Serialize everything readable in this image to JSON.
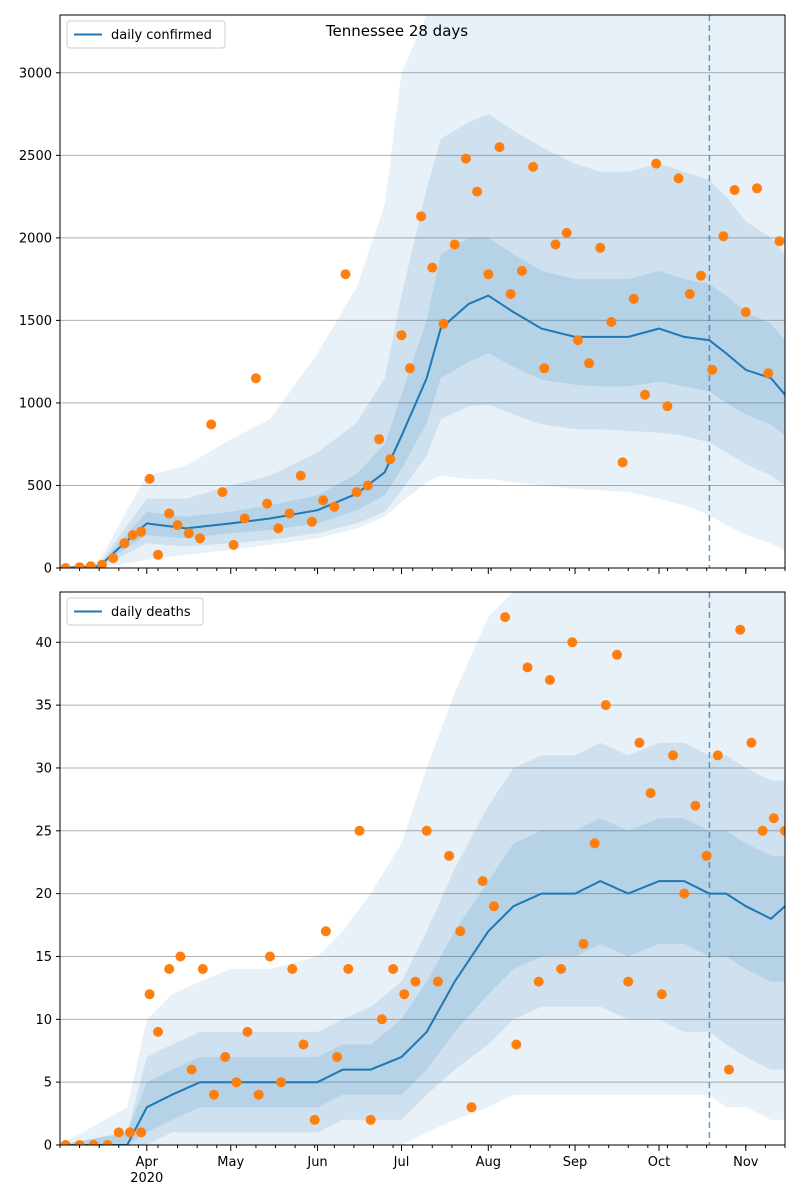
{
  "title": "Tennessee 28 days",
  "x_ticks": [
    "Apr",
    "May",
    "Jun",
    "Jul",
    "Aug",
    "Sep",
    "Oct",
    "Nov"
  ],
  "x_year_label": "2020",
  "colors": {
    "line": "#1f77b4",
    "points": "#ff7f0e",
    "band": "#1f77b4",
    "grid": "#b0b0b0"
  },
  "chart_data": [
    {
      "type": "line",
      "legend_label": "daily confirmed",
      "legend_position": "top-left",
      "x_range": [
        "2020-03-01",
        "2020-11-15"
      ],
      "ylim": [
        0,
        3350
      ],
      "yticks": [
        0,
        500,
        1000,
        1500,
        2000,
        2500,
        3000
      ],
      "grid": "y",
      "forecast_start": "2020-10-19",
      "line": {
        "x": [
          "2020-03-01",
          "2020-03-15",
          "2020-03-22",
          "2020-04-01",
          "2020-04-15",
          "2020-05-01",
          "2020-05-15",
          "2020-06-01",
          "2020-06-15",
          "2020-06-25",
          "2020-07-01",
          "2020-07-10",
          "2020-07-15",
          "2020-07-25",
          "2020-08-01",
          "2020-08-10",
          "2020-08-20",
          "2020-09-01",
          "2020-09-10",
          "2020-09-20",
          "2020-10-01",
          "2020-10-10",
          "2020-10-19",
          "2020-10-25",
          "2020-11-01",
          "2020-11-10",
          "2020-11-15"
        ],
        "y": [
          0,
          10,
          120,
          270,
          240,
          270,
          300,
          350,
          450,
          580,
          800,
          1150,
          1450,
          1600,
          1650,
          1550,
          1450,
          1400,
          1400,
          1400,
          1450,
          1400,
          1380,
          1300,
          1200,
          1150,
          1050
        ]
      },
      "bands": [
        {
          "level": "outer",
          "lower": [
            0,
            0,
            20,
            50,
            80,
            110,
            140,
            180,
            240,
            310,
            400,
            520,
            560,
            540,
            540,
            520,
            500,
            480,
            470,
            460,
            420,
            380,
            320,
            260,
            200,
            150,
            100
          ],
          "upper": [
            0,
            40,
            260,
            560,
            620,
            780,
            900,
            1300,
            1700,
            2200,
            3000,
            3350,
            3350,
            3350,
            3350,
            3350,
            3350,
            3350,
            3350,
            3350,
            3350,
            3350,
            3350,
            3350,
            3350,
            3350,
            3350
          ]
        },
        {
          "level": "middle",
          "lower": [
            0,
            3,
            60,
            150,
            130,
            150,
            170,
            210,
            270,
            340,
            470,
            680,
            900,
            980,
            990,
            930,
            870,
            840,
            840,
            830,
            820,
            800,
            760,
            700,
            630,
            560,
            500
          ],
          "upper": [
            0,
            20,
            190,
            420,
            420,
            500,
            560,
            700,
            880,
            1150,
            1650,
            2300,
            2600,
            2700,
            2750,
            2650,
            2550,
            2450,
            2400,
            2400,
            2450,
            2400,
            2350,
            2250,
            2100,
            2000,
            1900
          ]
        },
        {
          "level": "inner",
          "lower": [
            0,
            6,
            90,
            200,
            180,
            210,
            230,
            270,
            350,
            440,
            600,
            880,
            1150,
            1250,
            1300,
            1220,
            1140,
            1110,
            1100,
            1100,
            1130,
            1100,
            1070,
            1000,
            930,
            870,
            800
          ],
          "upper": [
            0,
            14,
            150,
            340,
            310,
            340,
            380,
            440,
            570,
            750,
            1050,
            1500,
            1900,
            2000,
            2000,
            1900,
            1800,
            1750,
            1750,
            1750,
            1800,
            1750,
            1720,
            1650,
            1550,
            1480,
            1380
          ]
        }
      ],
      "points": {
        "x": [
          "2020-03-03",
          "2020-03-08",
          "2020-03-12",
          "2020-03-16",
          "2020-03-20",
          "2020-03-24",
          "2020-03-27",
          "2020-03-30",
          "2020-04-02",
          "2020-04-05",
          "2020-04-09",
          "2020-04-12",
          "2020-04-16",
          "2020-04-20",
          "2020-04-24",
          "2020-04-28",
          "2020-05-02",
          "2020-05-06",
          "2020-05-10",
          "2020-05-14",
          "2020-05-18",
          "2020-05-22",
          "2020-05-26",
          "2020-05-30",
          "2020-06-03",
          "2020-06-07",
          "2020-06-11",
          "2020-06-15",
          "2020-06-19",
          "2020-06-23",
          "2020-06-27",
          "2020-07-01",
          "2020-07-04",
          "2020-07-08",
          "2020-07-12",
          "2020-07-16",
          "2020-07-20",
          "2020-07-24",
          "2020-07-28",
          "2020-08-01",
          "2020-08-05",
          "2020-08-09",
          "2020-08-13",
          "2020-08-17",
          "2020-08-21",
          "2020-08-25",
          "2020-08-29",
          "2020-09-02",
          "2020-09-06",
          "2020-09-10",
          "2020-09-14",
          "2020-09-18",
          "2020-09-22",
          "2020-09-26",
          "2020-09-30",
          "2020-10-04",
          "2020-10-08",
          "2020-10-12",
          "2020-10-16",
          "2020-10-20",
          "2020-10-24",
          "2020-10-28",
          "2020-11-01",
          "2020-11-05",
          "2020-11-09",
          "2020-11-13"
        ],
        "y": [
          0,
          5,
          10,
          20,
          60,
          150,
          200,
          220,
          540,
          80,
          330,
          260,
          210,
          180,
          870,
          460,
          140,
          300,
          1150,
          390,
          240,
          330,
          560,
          280,
          410,
          370,
          1780,
          460,
          500,
          780,
          660,
          1410,
          1210,
          2130,
          1820,
          1480,
          1960,
          2480,
          2280,
          1780,
          2550,
          1660,
          1800,
          2430,
          1210,
          1960,
          2030,
          1380,
          1240,
          1940,
          1490,
          640,
          1630,
          1050,
          2450,
          980,
          2360,
          1660,
          1770,
          1200,
          2010,
          2290,
          1550,
          2300,
          1180,
          1980
        ]
      }
    },
    {
      "type": "line",
      "legend_label": "daily deaths",
      "legend_position": "top-left",
      "x_range": [
        "2020-03-01",
        "2020-11-15"
      ],
      "ylim": [
        0,
        44
      ],
      "yticks": [
        0,
        5,
        10,
        15,
        20,
        25,
        30,
        35,
        40
      ],
      "grid": "y",
      "forecast_start": "2020-10-19",
      "line": {
        "x": [
          "2020-03-01",
          "2020-03-25",
          "2020-04-01",
          "2020-04-10",
          "2020-04-20",
          "2020-05-01",
          "2020-05-15",
          "2020-06-01",
          "2020-06-10",
          "2020-06-20",
          "2020-07-01",
          "2020-07-10",
          "2020-07-20",
          "2020-08-01",
          "2020-08-10",
          "2020-08-20",
          "2020-09-01",
          "2020-09-10",
          "2020-09-20",
          "2020-10-01",
          "2020-10-10",
          "2020-10-19",
          "2020-10-25",
          "2020-11-01",
          "2020-11-10",
          "2020-11-15"
        ],
        "y": [
          0,
          0,
          3,
          4,
          5,
          5,
          5,
          5,
          6,
          6,
          7,
          9,
          13,
          17,
          19,
          20,
          20,
          21,
          20,
          21,
          21,
          20,
          20,
          19,
          18,
          19
        ]
      },
      "bands": [
        {
          "level": "outer",
          "lower": [
            0,
            0,
            0,
            0,
            0,
            0,
            0,
            0,
            0,
            0,
            0,
            1,
            2,
            3,
            4,
            4,
            4,
            4,
            4,
            4,
            4,
            4,
            3,
            3,
            2,
            2
          ],
          "upper": [
            0,
            3,
            10,
            12,
            13,
            14,
            14,
            15,
            17,
            20,
            24,
            30,
            36,
            42,
            44,
            44,
            44,
            44,
            44,
            44,
            44,
            44,
            44,
            44,
            44,
            44
          ]
        },
        {
          "level": "middle",
          "lower": [
            0,
            0,
            0,
            1,
            1,
            1,
            1,
            1,
            2,
            2,
            2,
            4,
            6,
            8,
            10,
            11,
            11,
            11,
            10,
            10,
            9,
            9,
            8,
            7,
            6,
            6
          ],
          "upper": [
            0,
            1,
            7,
            8,
            9,
            9,
            9,
            9,
            10,
            11,
            13,
            17,
            22,
            27,
            30,
            31,
            31,
            32,
            31,
            32,
            32,
            31,
            31,
            30,
            29,
            29
          ]
        },
        {
          "level": "inner",
          "lower": [
            0,
            0,
            1,
            2,
            3,
            3,
            3,
            3,
            4,
            4,
            4,
            6,
            9,
            12,
            14,
            15,
            15,
            16,
            15,
            16,
            16,
            15,
            15,
            14,
            13,
            13
          ],
          "upper": [
            0,
            1,
            5,
            6,
            7,
            7,
            7,
            7,
            8,
            8,
            10,
            13,
            17,
            21,
            24,
            25,
            25,
            26,
            25,
            26,
            26,
            25,
            25,
            24,
            23,
            23
          ]
        }
      ],
      "points": {
        "x": [
          "2020-03-03",
          "2020-03-08",
          "2020-03-13",
          "2020-03-18",
          "2020-03-22",
          "2020-03-26",
          "2020-03-30",
          "2020-04-02",
          "2020-04-05",
          "2020-04-09",
          "2020-04-13",
          "2020-04-17",
          "2020-04-21",
          "2020-04-25",
          "2020-04-29",
          "2020-05-03",
          "2020-05-07",
          "2020-05-11",
          "2020-05-15",
          "2020-05-19",
          "2020-05-23",
          "2020-05-27",
          "2020-05-31",
          "2020-06-04",
          "2020-06-08",
          "2020-06-12",
          "2020-06-16",
          "2020-06-20",
          "2020-06-24",
          "2020-06-28",
          "2020-07-02",
          "2020-07-06",
          "2020-07-10",
          "2020-07-14",
          "2020-07-18",
          "2020-07-22",
          "2020-07-26",
          "2020-07-30",
          "2020-08-03",
          "2020-08-07",
          "2020-08-11",
          "2020-08-15",
          "2020-08-19",
          "2020-08-23",
          "2020-08-27",
          "2020-08-31",
          "2020-09-04",
          "2020-09-08",
          "2020-09-12",
          "2020-09-16",
          "2020-09-20",
          "2020-09-24",
          "2020-09-28",
          "2020-10-02",
          "2020-10-06",
          "2020-10-10",
          "2020-10-14",
          "2020-10-18",
          "2020-10-22",
          "2020-10-26",
          "2020-10-30",
          "2020-11-03",
          "2020-11-07",
          "2020-11-11",
          "2020-11-15"
        ],
        "y": [
          0,
          0,
          0,
          0,
          1,
          1,
          1,
          12,
          9,
          14,
          15,
          6,
          14,
          4,
          7,
          5,
          9,
          4,
          15,
          5,
          14,
          8,
          2,
          17,
          7,
          14,
          25,
          2,
          10,
          14,
          12,
          13,
          25,
          13,
          23,
          17,
          3,
          21,
          19,
          42,
          8,
          38,
          13,
          37,
          14,
          40,
          16,
          24,
          35,
          39,
          13,
          32,
          28,
          12,
          31,
          20,
          27,
          23,
          31,
          6,
          41,
          32,
          25,
          26,
          25
        ]
      }
    }
  ]
}
